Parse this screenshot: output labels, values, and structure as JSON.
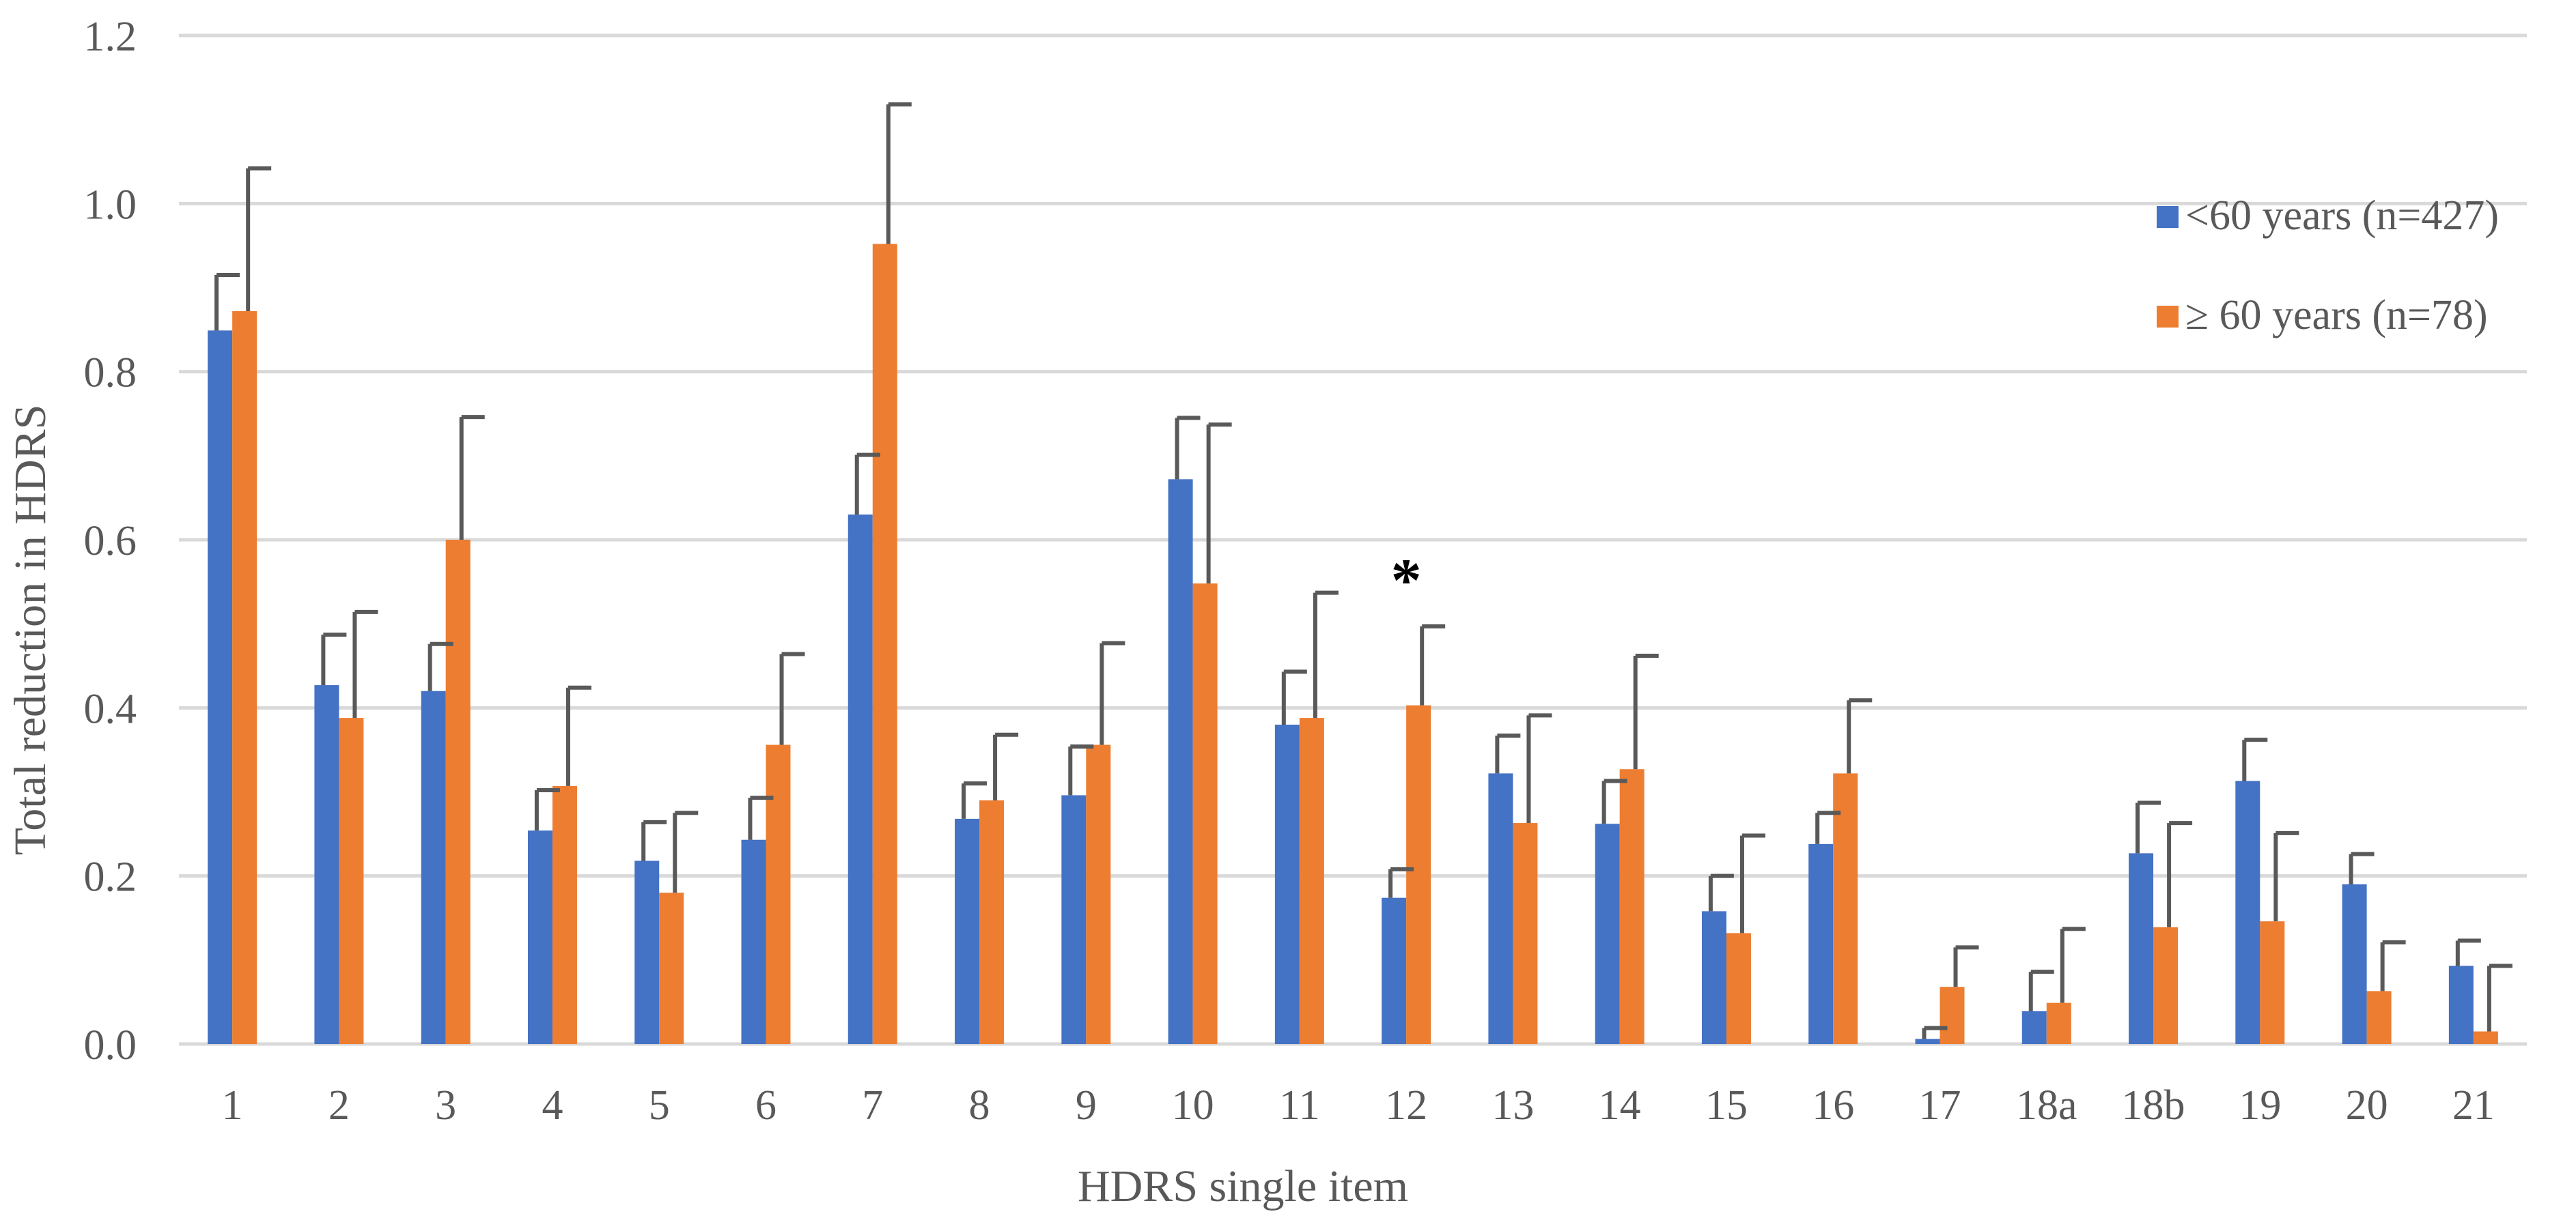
{
  "chart_data": {
    "type": "bar",
    "title": "",
    "xlabel": "HDRS single item",
    "ylabel": "Total reduction in HDRS",
    "ylim": [
      0,
      1.2
    ],
    "yticks": [
      "0.0",
      "0.2",
      "0.4",
      "0.6",
      "0.8",
      "1.0",
      "1.2"
    ],
    "ytick_values": [
      0,
      0.2,
      0.4,
      0.6,
      0.8,
      1.0,
      1.2
    ],
    "grid": true,
    "legend_position": "right",
    "categories": [
      "1",
      "2",
      "3",
      "4",
      "5",
      "6",
      "7",
      "8",
      "9",
      "10",
      "11",
      "12",
      "13",
      "14",
      "15",
      "16",
      "17",
      "18a",
      "18b",
      "19",
      "20",
      "21"
    ],
    "series": [
      {
        "name": "<60 years (n=427)",
        "color": "#4472C4",
        "values": [
          0.849,
          0.427,
          0.42,
          0.254,
          0.218,
          0.243,
          0.63,
          0.268,
          0.296,
          0.672,
          0.38,
          0.174,
          0.322,
          0.262,
          0.158,
          0.238,
          0.006,
          0.039,
          0.227,
          0.313,
          0.19,
          0.093
        ],
        "error": [
          0.066,
          0.06,
          0.056,
          0.048,
          0.046,
          0.05,
          0.071,
          0.042,
          0.058,
          0.073,
          0.063,
          0.034,
          0.045,
          0.051,
          0.042,
          0.037,
          0.013,
          0.047,
          0.06,
          0.049,
          0.036,
          0.03
        ]
      },
      {
        "name": "≥ 60 years (n=78)",
        "color": "#ED7D31",
        "values": [
          0.872,
          0.388,
          0.6,
          0.307,
          0.18,
          0.356,
          0.952,
          0.29,
          0.356,
          0.548,
          0.388,
          0.403,
          0.263,
          0.327,
          0.132,
          0.322,
          0.068,
          0.049,
          0.139,
          0.146,
          0.063,
          0.015
        ],
        "error": [
          0.17,
          0.126,
          0.146,
          0.117,
          0.095,
          0.108,
          0.166,
          0.078,
          0.121,
          0.189,
          0.149,
          0.094,
          0.128,
          0.135,
          0.116,
          0.087,
          0.047,
          0.088,
          0.124,
          0.105,
          0.058,
          0.078
        ]
      }
    ],
    "annotations": [
      {
        "text": "*",
        "category": "12",
        "value": 0.56
      }
    ]
  }
}
